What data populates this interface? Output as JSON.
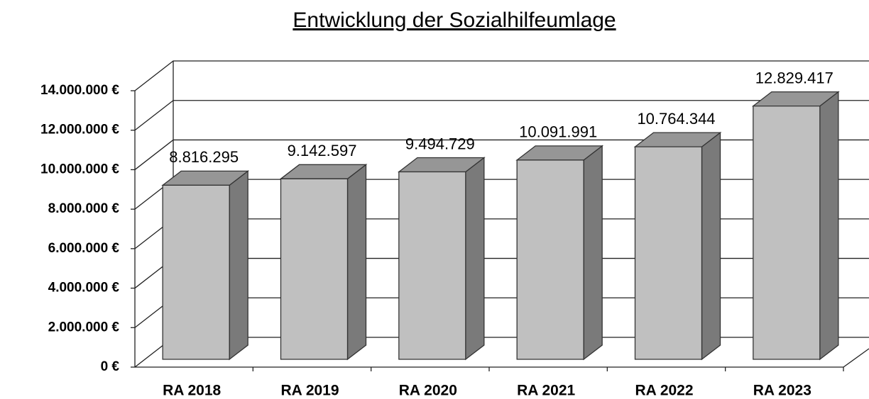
{
  "chart_data": {
    "type": "bar3d",
    "title": "Entwicklung der Sozialhilfeumlage",
    "categories": [
      "RA 2018",
      "RA 2019",
      "RA 2020",
      "RA 2021",
      "RA 2022",
      "RA 2023"
    ],
    "values": [
      8816295,
      9142597,
      9494729,
      10091991,
      10764344,
      12829417
    ],
    "value_labels": [
      "8.816.295",
      "9.142.597",
      "9.494.729",
      "10.091.991",
      "10.764.344",
      "12.829.417"
    ],
    "color": "#c0c0c0",
    "ylim": [
      0,
      14000000
    ],
    "yticks": [
      {
        "value": 0,
        "label": "0 €"
      },
      {
        "value": 2000000,
        "label": "2.000.000 €"
      },
      {
        "value": 4000000,
        "label": "4.000.000 €"
      },
      {
        "value": 6000000,
        "label": "6.000.000 €"
      },
      {
        "value": 8000000,
        "label": "8.000.000 €"
      },
      {
        "value": 10000000,
        "label": "10.000.000 €"
      },
      {
        "value": 12000000,
        "label": "12.000.000 €"
      },
      {
        "value": 14000000,
        "label": "14.000.000 €"
      }
    ],
    "grid": true
  }
}
